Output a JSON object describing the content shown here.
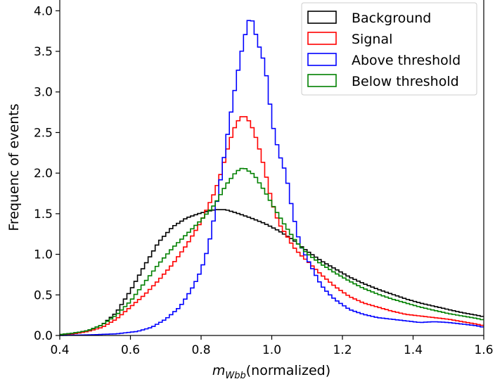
{
  "chart_data": {
    "type": "histogram-step",
    "xlabel_var": "m",
    "xlabel_sub": "Wbb",
    "xlabel_rest": "(normalized)",
    "ylabel": "Frequenc of events",
    "xlim": [
      0.4,
      1.6
    ],
    "ylim": [
      0.0,
      4.15
    ],
    "xticks": [
      0.4,
      0.6,
      0.8,
      1.0,
      1.2,
      1.4,
      1.6
    ],
    "yticks": [
      0.0,
      0.5,
      1.0,
      1.5,
      2.0,
      2.5,
      3.0,
      3.5,
      4.0
    ],
    "legend_position": "top-right",
    "series": [
      {
        "name": "Background",
        "color": "#000000",
        "points": [
          [
            0.4,
            0.01
          ],
          [
            0.44,
            0.03
          ],
          [
            0.48,
            0.06
          ],
          [
            0.52,
            0.13
          ],
          [
            0.56,
            0.28
          ],
          [
            0.6,
            0.55
          ],
          [
            0.64,
            0.86
          ],
          [
            0.68,
            1.15
          ],
          [
            0.72,
            1.34
          ],
          [
            0.76,
            1.45
          ],
          [
            0.8,
            1.51
          ],
          [
            0.84,
            1.55
          ],
          [
            0.87,
            1.55
          ],
          [
            0.9,
            1.51
          ],
          [
            0.94,
            1.45
          ],
          [
            0.98,
            1.38
          ],
          [
            1.02,
            1.29
          ],
          [
            1.06,
            1.18
          ],
          [
            1.1,
            1.04
          ],
          [
            1.14,
            0.92
          ],
          [
            1.18,
            0.82
          ],
          [
            1.22,
            0.72
          ],
          [
            1.26,
            0.64
          ],
          [
            1.3,
            0.57
          ],
          [
            1.34,
            0.51
          ],
          [
            1.38,
            0.45
          ],
          [
            1.42,
            0.4
          ],
          [
            1.46,
            0.36
          ],
          [
            1.5,
            0.32
          ],
          [
            1.54,
            0.28
          ],
          [
            1.58,
            0.25
          ],
          [
            1.6,
            0.23
          ]
        ]
      },
      {
        "name": "Signal",
        "color": "#ff0000",
        "points": [
          [
            0.4,
            0.0
          ],
          [
            0.44,
            0.02
          ],
          [
            0.48,
            0.05
          ],
          [
            0.52,
            0.1
          ],
          [
            0.56,
            0.2
          ],
          [
            0.6,
            0.35
          ],
          [
            0.64,
            0.5
          ],
          [
            0.68,
            0.68
          ],
          [
            0.72,
            0.88
          ],
          [
            0.76,
            1.12
          ],
          [
            0.8,
            1.4
          ],
          [
            0.84,
            1.78
          ],
          [
            0.86,
            2.05
          ],
          [
            0.88,
            2.38
          ],
          [
            0.9,
            2.62
          ],
          [
            0.92,
            2.72
          ],
          [
            0.94,
            2.62
          ],
          [
            0.96,
            2.38
          ],
          [
            0.98,
            2.05
          ],
          [
            1.0,
            1.65
          ],
          [
            1.02,
            1.38
          ],
          [
            1.04,
            1.25
          ],
          [
            1.06,
            1.1
          ],
          [
            1.08,
            1.0
          ],
          [
            1.1,
            0.92
          ],
          [
            1.14,
            0.75
          ],
          [
            1.18,
            0.6
          ],
          [
            1.22,
            0.48
          ],
          [
            1.26,
            0.4
          ],
          [
            1.3,
            0.35
          ],
          [
            1.34,
            0.3
          ],
          [
            1.38,
            0.26
          ],
          [
            1.42,
            0.24
          ],
          [
            1.46,
            0.22
          ],
          [
            1.5,
            0.2
          ],
          [
            1.54,
            0.17
          ],
          [
            1.58,
            0.14
          ],
          [
            1.6,
            0.12
          ]
        ]
      },
      {
        "name": "Above threshold",
        "color": "#0000ff",
        "points": [
          [
            0.4,
            0.0
          ],
          [
            0.5,
            0.01
          ],
          [
            0.56,
            0.02
          ],
          [
            0.62,
            0.05
          ],
          [
            0.66,
            0.1
          ],
          [
            0.7,
            0.2
          ],
          [
            0.74,
            0.35
          ],
          [
            0.76,
            0.48
          ],
          [
            0.78,
            0.62
          ],
          [
            0.8,
            0.8
          ],
          [
            0.82,
            1.08
          ],
          [
            0.84,
            1.52
          ],
          [
            0.86,
            2.05
          ],
          [
            0.88,
            2.62
          ],
          [
            0.9,
            3.15
          ],
          [
            0.92,
            3.62
          ],
          [
            0.935,
            3.88
          ],
          [
            0.94,
            3.95
          ],
          [
            0.95,
            3.8
          ],
          [
            0.96,
            3.62
          ],
          [
            0.98,
            3.35
          ],
          [
            0.99,
            3.05
          ],
          [
            1.0,
            2.65
          ],
          [
            1.02,
            2.25
          ],
          [
            1.04,
            2.0
          ],
          [
            1.06,
            1.5
          ],
          [
            1.08,
            1.12
          ],
          [
            1.1,
            0.95
          ],
          [
            1.12,
            0.78
          ],
          [
            1.14,
            0.62
          ],
          [
            1.16,
            0.52
          ],
          [
            1.18,
            0.44
          ],
          [
            1.2,
            0.38
          ],
          [
            1.22,
            0.32
          ],
          [
            1.26,
            0.26
          ],
          [
            1.3,
            0.22
          ],
          [
            1.34,
            0.2
          ],
          [
            1.38,
            0.18
          ],
          [
            1.42,
            0.16
          ],
          [
            1.46,
            0.17
          ],
          [
            1.5,
            0.16
          ],
          [
            1.54,
            0.14
          ],
          [
            1.58,
            0.12
          ],
          [
            1.6,
            0.1
          ]
        ]
      },
      {
        "name": "Below threshold",
        "color": "#008000",
        "points": [
          [
            0.4,
            0.01
          ],
          [
            0.44,
            0.03
          ],
          [
            0.48,
            0.06
          ],
          [
            0.52,
            0.13
          ],
          [
            0.56,
            0.25
          ],
          [
            0.6,
            0.42
          ],
          [
            0.64,
            0.65
          ],
          [
            0.68,
            0.88
          ],
          [
            0.72,
            1.08
          ],
          [
            0.76,
            1.25
          ],
          [
            0.8,
            1.42
          ],
          [
            0.84,
            1.62
          ],
          [
            0.87,
            1.85
          ],
          [
            0.9,
            2.02
          ],
          [
            0.92,
            2.07
          ],
          [
            0.95,
            1.98
          ],
          [
            0.98,
            1.78
          ],
          [
            1.01,
            1.55
          ],
          [
            1.04,
            1.34
          ],
          [
            1.07,
            1.15
          ],
          [
            1.1,
            1.01
          ],
          [
            1.14,
            0.88
          ],
          [
            1.18,
            0.77
          ],
          [
            1.22,
            0.67
          ],
          [
            1.26,
            0.58
          ],
          [
            1.3,
            0.51
          ],
          [
            1.34,
            0.45
          ],
          [
            1.38,
            0.4
          ],
          [
            1.42,
            0.35
          ],
          [
            1.46,
            0.31
          ],
          [
            1.5,
            0.27
          ],
          [
            1.54,
            0.24
          ],
          [
            1.58,
            0.21
          ],
          [
            1.6,
            0.19
          ]
        ]
      }
    ]
  }
}
